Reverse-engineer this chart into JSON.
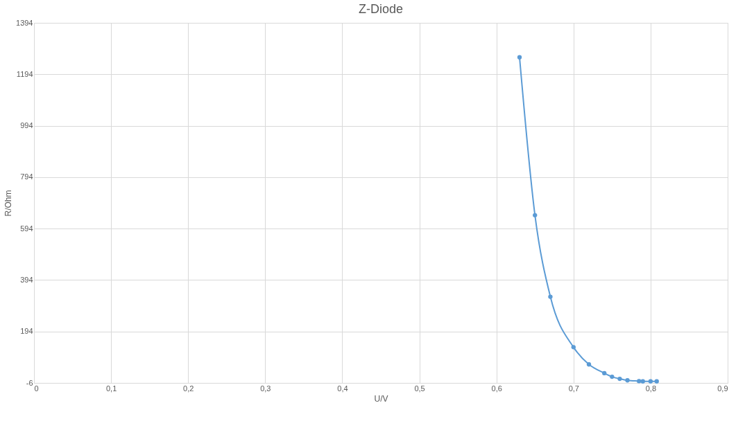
{
  "chart_data": {
    "type": "line",
    "title": "Z-Diode",
    "xlabel": "U/V",
    "ylabel": "R/Ohm",
    "series": [
      {
        "color": "#5b9bd5",
        "x": [
          0.63,
          0.65,
          0.67,
          0.7,
          0.72,
          0.74,
          0.75,
          0.76,
          0.77,
          0.785,
          0.79,
          0.8,
          0.808
        ],
        "values": [
          1260,
          646,
          329,
          133,
          66,
          32,
          18,
          10,
          4,
          1,
          0,
          0,
          0
        ]
      }
    ],
    "xlim": [
      0,
      0.9
    ],
    "xticks": [
      0,
      {
        "value": 0.1,
        "label": "0,1"
      },
      {
        "value": 0.2,
        "label": "0,2"
      },
      {
        "value": 0.3,
        "label": "0,3"
      },
      {
        "value": 0.4,
        "label": "0,4"
      },
      {
        "value": 0.5,
        "label": "0,5"
      },
      {
        "value": 0.6,
        "label": "0,6"
      },
      {
        "value": 0.7,
        "label": "0,7"
      },
      {
        "value": 0.8,
        "label": "0,8"
      },
      {
        "value": 0.9,
        "label": "0,9"
      }
    ],
    "ylim": [
      -6,
      1394
    ],
    "yticks": [
      -6,
      194,
      394,
      594,
      794,
      994,
      1194,
      1394
    ],
    "grid": true,
    "marker": "circle",
    "line_style": "solid"
  }
}
